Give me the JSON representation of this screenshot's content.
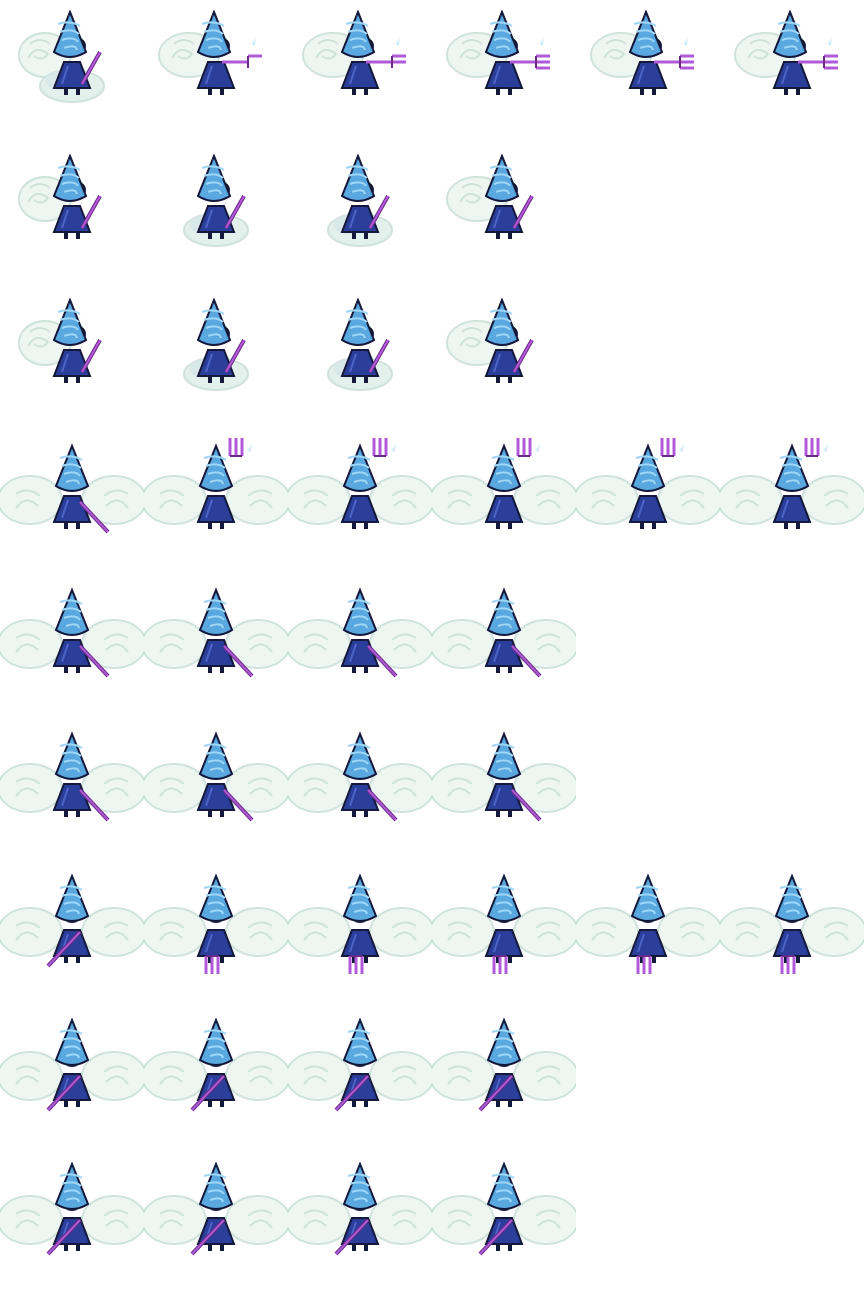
{
  "sheet": {
    "columns": 6,
    "rows": [
      {
        "facing": "side",
        "frames": [
          "trident-thrust",
          "trident-thrust",
          "trident-thrust",
          "trident-thrust",
          "trident-thrust",
          "trident-thrust"
        ]
      },
      {
        "facing": "side",
        "frames": [
          "idle",
          "cloud",
          "cloud",
          "idle"
        ]
      },
      {
        "facing": "side",
        "frames": [
          "idle",
          "cloud",
          "cloud",
          "idle"
        ]
      },
      {
        "facing": "back",
        "frames": [
          "idle",
          "trident-raise",
          "trident-raise",
          "trident-raise",
          "trident-raise",
          "trident-raise"
        ]
      },
      {
        "facing": "back",
        "frames": [
          "idle",
          "idle",
          "idle",
          "idle"
        ]
      },
      {
        "facing": "back",
        "frames": [
          "idle",
          "idle",
          "idle",
          "idle"
        ]
      },
      {
        "facing": "front",
        "frames": [
          "idle",
          "trident-down",
          "trident-down",
          "trident-down",
          "trident-down",
          "trident-down"
        ]
      },
      {
        "facing": "front",
        "frames": [
          "idle",
          "idle",
          "idle",
          "idle"
        ]
      },
      {
        "facing": "front",
        "frames": [
          "idle",
          "idle",
          "idle",
          "idle"
        ]
      }
    ]
  },
  "colors": {
    "hair": "#5aa8e0",
    "hair_light": "#9fd6f5",
    "hair_dark": "#2a5fa0",
    "dress": "#2b3f9a",
    "dress_light": "#4a63c4",
    "outline": "#14183a",
    "skin": "#a8c6ee",
    "wing": "#eef6f2",
    "wing_shade": "#cfe2dc",
    "cloud": "#e3f1ec",
    "trident": "#b05ad8",
    "trident_dark": "#6a2a8a",
    "mouth": "#e05a30",
    "sparkle": "#bfe7ff"
  }
}
